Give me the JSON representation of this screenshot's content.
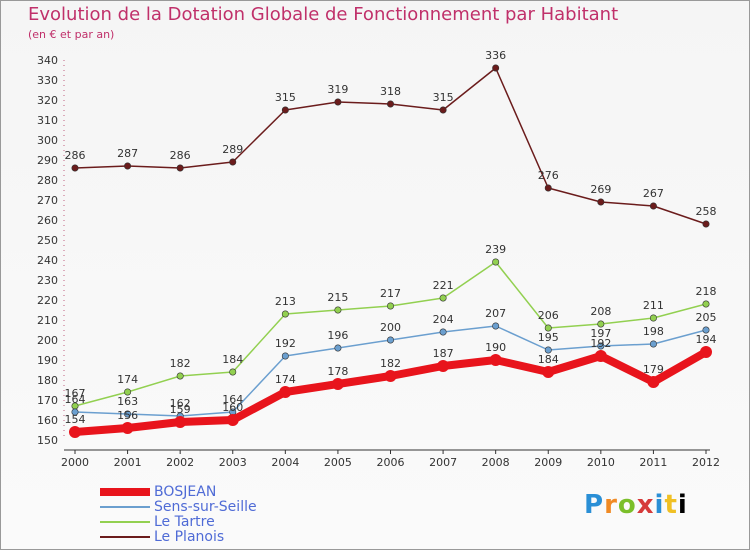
{
  "header": {
    "title": "Evolution de la Dotation Globale de Fonctionnement par Habitant",
    "subtitle": "(en € et par an)"
  },
  "logo": {
    "letters": [
      "P",
      "r",
      "o",
      "x",
      "i",
      "t",
      "i"
    ],
    "text": "Proxiti"
  },
  "chart_data": {
    "type": "line",
    "title": "Evolution de la Dotation Globale de Fonctionnement par Habitant",
    "subtitle": "(en € et par an)",
    "xlabel": "",
    "ylabel": "",
    "x": [
      "2000",
      "2001",
      "2002",
      "2003",
      "2004",
      "2005",
      "2006",
      "2007",
      "2008",
      "2009",
      "2010",
      "2011",
      "2012"
    ],
    "ylim": [
      150,
      340
    ],
    "yticks": [
      150,
      160,
      170,
      180,
      190,
      200,
      210,
      220,
      230,
      240,
      250,
      260,
      270,
      280,
      290,
      300,
      310,
      320,
      330,
      340
    ],
    "grid": false,
    "legend_position": "bottom-left",
    "series": [
      {
        "name": "BOSJEAN",
        "color": "#e8141c",
        "bold": true,
        "values": [
          154,
          156,
          159,
          160,
          174,
          178,
          182,
          187,
          190,
          184,
          192,
          179,
          194
        ]
      },
      {
        "name": "Sens-sur-Seille",
        "color": "#6b9fcf",
        "bold": false,
        "values": [
          164,
          163,
          162,
          164,
          192,
          196,
          200,
          204,
          207,
          195,
          197,
          198,
          205
        ]
      },
      {
        "name": "Le Tartre",
        "color": "#92d050",
        "bold": false,
        "values": [
          167,
          174,
          182,
          184,
          213,
          215,
          217,
          221,
          239,
          206,
          208,
          211,
          218
        ]
      },
      {
        "name": "Le Planois",
        "color": "#6b1c1c",
        "bold": false,
        "values": [
          286,
          287,
          286,
          289,
          315,
          319,
          318,
          315,
          336,
          276,
          269,
          267,
          258
        ]
      }
    ]
  }
}
